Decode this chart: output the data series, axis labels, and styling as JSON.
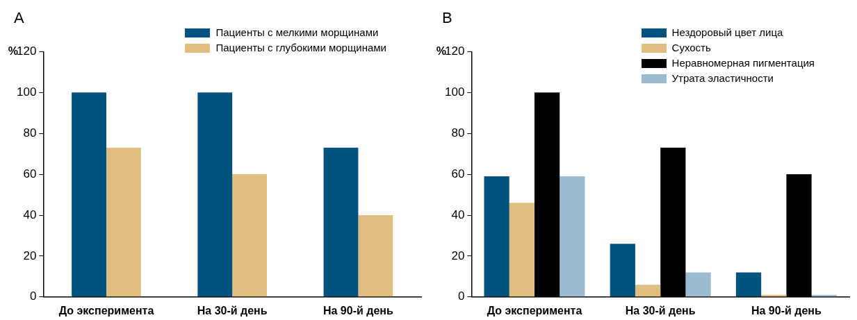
{
  "chart_data": [
    {
      "type": "bar",
      "title": "A",
      "ylabel": "%",
      "categories": [
        "До эксперимента",
        "На 30-й день",
        "На 90-й день"
      ],
      "series": [
        {
          "name": "Пациенты с мелкими морщинами",
          "color": "#00527f",
          "values": [
            100,
            100,
            73
          ]
        },
        {
          "name": "Пациенты с глубокими морщинами",
          "color": "#dfbe7f",
          "values": [
            73,
            60,
            40
          ]
        }
      ],
      "ylim": [
        0,
        120
      ],
      "yticks": [
        0,
        20,
        40,
        60,
        80,
        100,
        120
      ],
      "grid": false,
      "legend": "top right"
    },
    {
      "type": "bar",
      "title": "B",
      "ylabel": "%",
      "categories": [
        "До эксперимента",
        "На 30-й день",
        "На 90-й день"
      ],
      "series": [
        {
          "name": "Нездоровый цвет лица",
          "color": "#00527f",
          "values": [
            59,
            26,
            12
          ]
        },
        {
          "name": "Сухость",
          "color": "#dfbe7f",
          "values": [
            46,
            6,
            1
          ]
        },
        {
          "name": "Неравномерная пигментация",
          "color": "#000000",
          "values": [
            100,
            73,
            60
          ]
        },
        {
          "name": "Утрата эластичности",
          "color": "#9bbbd0",
          "values": [
            59,
            12,
            1
          ]
        }
      ],
      "ylim": [
        0,
        120
      ],
      "yticks": [
        0,
        20,
        40,
        60,
        80,
        100,
        120
      ],
      "grid": false,
      "legend": "top right"
    }
  ]
}
